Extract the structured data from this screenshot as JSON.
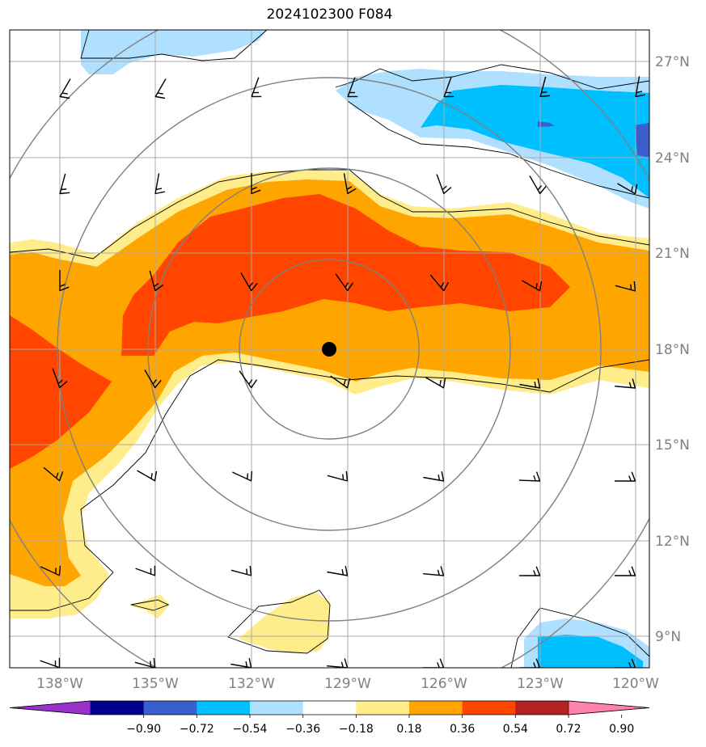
{
  "title": "2024102300 F084",
  "lat_labels": [
    "27°N",
    "24°N",
    "21°N",
    "18°N",
    "15°N",
    "12°N",
    "9°N"
  ],
  "lon_labels": [
    "138°W",
    "135°W",
    "132°W",
    "129°W",
    "126°W",
    "123°W",
    "120°W"
  ],
  "colorbar": {
    "ticks": [
      "−0.90",
      "−0.72",
      "−0.54",
      "−0.36",
      "−0.18",
      "0.18",
      "0.36",
      "0.54",
      "0.72",
      "0.90"
    ],
    "colors": [
      "#9932cc",
      "#00008b",
      "#3a5fcd",
      "#00bfff",
      "#b0e0ff",
      "#ffffff",
      "#ffec8b",
      "#ffa500",
      "#ff4500",
      "#b22222",
      "#ff82ab"
    ]
  },
  "storm_center": {
    "lon": -129.4,
    "lat": 18.0
  },
  "colors": {
    "light_yellow": "#ffec8b",
    "orange": "#ffa500",
    "red_orange": "#ff4500",
    "light_blue": "#b0e0ff",
    "deep_sky_blue": "#00bfff",
    "royal_blue": "#3a5fcd",
    "grid": "#a9a9a9",
    "range_rings": "#808080"
  }
}
